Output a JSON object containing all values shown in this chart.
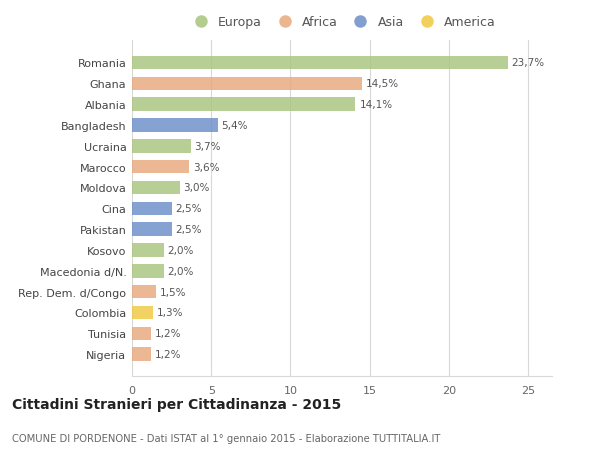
{
  "categories": [
    "Romania",
    "Ghana",
    "Albania",
    "Bangladesh",
    "Ucraina",
    "Marocco",
    "Moldova",
    "Cina",
    "Pakistan",
    "Kosovo",
    "Macedonia d/N.",
    "Rep. Dem. d/Congo",
    "Colombia",
    "Tunisia",
    "Nigeria"
  ],
  "values": [
    23.7,
    14.5,
    14.1,
    5.4,
    3.7,
    3.6,
    3.0,
    2.5,
    2.5,
    2.0,
    2.0,
    1.5,
    1.3,
    1.2,
    1.2
  ],
  "labels": [
    "23,7%",
    "14,5%",
    "14,1%",
    "5,4%",
    "3,7%",
    "3,6%",
    "3,0%",
    "2,5%",
    "2,5%",
    "2,0%",
    "2,0%",
    "1,5%",
    "1,3%",
    "1,2%",
    "1,2%"
  ],
  "continents": [
    "Europa",
    "Africa",
    "Europa",
    "Asia",
    "Europa",
    "Africa",
    "Europa",
    "Asia",
    "Asia",
    "Europa",
    "Europa",
    "Africa",
    "America",
    "Africa",
    "Africa"
  ],
  "colors": {
    "Europa": "#a8c47e",
    "Africa": "#e8a87c",
    "Asia": "#6b8ec9",
    "America": "#f0c840"
  },
  "legend_order": [
    "Europa",
    "Africa",
    "Asia",
    "America"
  ],
  "title": "Cittadini Stranieri per Cittadinanza - 2015",
  "subtitle": "COMUNE DI PORDENONE - Dati ISTAT al 1° gennaio 2015 - Elaborazione TUTTITALIA.IT",
  "xlim": [
    0,
    26.5
  ],
  "xticks": [
    0,
    5,
    10,
    15,
    20,
    25
  ],
  "background_color": "#ffffff",
  "grid_color": "#d8d8d8",
  "bar_height": 0.65
}
